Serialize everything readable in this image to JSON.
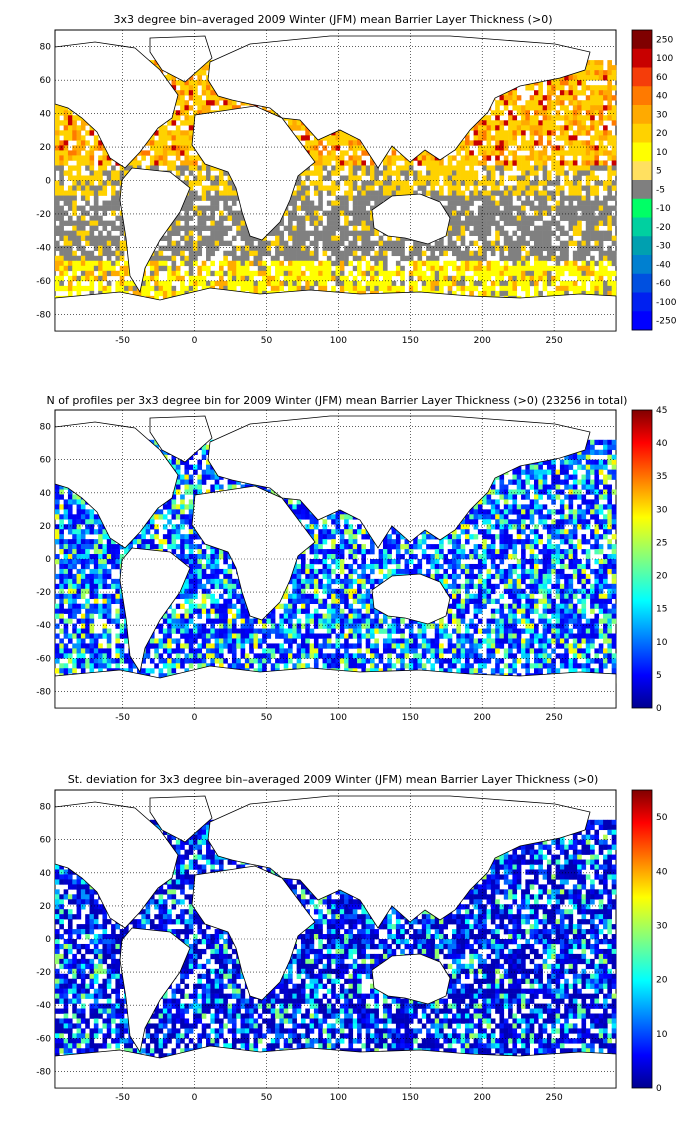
{
  "colors": {
    "gray_bin": "#808080",
    "land_outline": "#000000",
    "jet_low": "#00008f",
    "jet_high": "#800000"
  },
  "chart_data": [
    {
      "type": "heatmap",
      "title": "3x3 degree bin–averaged 2009 Winter (JFM) mean Barrier Layer Thickness (>0)",
      "x_ticks": [
        "-50",
        "0",
        "50",
        "100",
        "150",
        "200",
        "250"
      ],
      "y_ticks": [
        "80",
        "60",
        "40",
        "20",
        "0",
        "-20",
        "-40",
        "-60",
        "-80"
      ],
      "xlim": [
        -97,
        293
      ],
      "ylim": [
        -90,
        90
      ],
      "grid": true,
      "colorbar": {
        "kind": "discrete",
        "labels": [
          "250",
          "100",
          "60",
          "40",
          "30",
          "20",
          "10",
          "5",
          "-5",
          "-10",
          "-20",
          "-30",
          "-40",
          "-60",
          "-100",
          "-250"
        ],
        "colors": [
          "#7f0000",
          "#c80000",
          "#f53d0a",
          "#ff7a00",
          "#ffaa00",
          "#ffd200",
          "#ffff00",
          "#ffe060",
          "#7f7f7f",
          "#00ff66",
          "#00d0a0",
          "#00a0b0",
          "#0080d0",
          "#0050e0",
          "#0020f0",
          "#0000ff"
        ]
      }
    },
    {
      "type": "heatmap",
      "title": "N of profiles per 3x3 degree bin for 2009 Winter (JFM) mean Barrier Layer Thickness (>0) (23256 in total)",
      "x_ticks": [
        "-50",
        "0",
        "50",
        "100",
        "150",
        "200",
        "250"
      ],
      "y_ticks": [
        "80",
        "60",
        "40",
        "20",
        "0",
        "-20",
        "-40",
        "-60",
        "-80"
      ],
      "xlim": [
        -97,
        293
      ],
      "ylim": [
        -90,
        90
      ],
      "grid": true,
      "colorbar": {
        "kind": "continuous",
        "colormap": "jet",
        "range": [
          0,
          45
        ],
        "labels": [
          "45",
          "40",
          "35",
          "30",
          "25",
          "20",
          "15",
          "10",
          "5",
          "0"
        ]
      }
    },
    {
      "type": "heatmap",
      "title": "St. deviation for 3x3 degree bin–averaged 2009 Winter (JFM) mean Barrier Layer Thickness (>0)",
      "x_ticks": [
        "-50",
        "0",
        "50",
        "100",
        "150",
        "200",
        "250"
      ],
      "y_ticks": [
        "80",
        "60",
        "40",
        "20",
        "0",
        "-20",
        "-40",
        "-60",
        "-80"
      ],
      "xlim": [
        -97,
        293
      ],
      "ylim": [
        -90,
        90
      ],
      "grid": true,
      "colorbar": {
        "kind": "continuous",
        "colormap": "jet",
        "range": [
          0,
          55
        ],
        "labels": [
          "50",
          "40",
          "30",
          "20",
          "10",
          "0"
        ]
      }
    }
  ]
}
